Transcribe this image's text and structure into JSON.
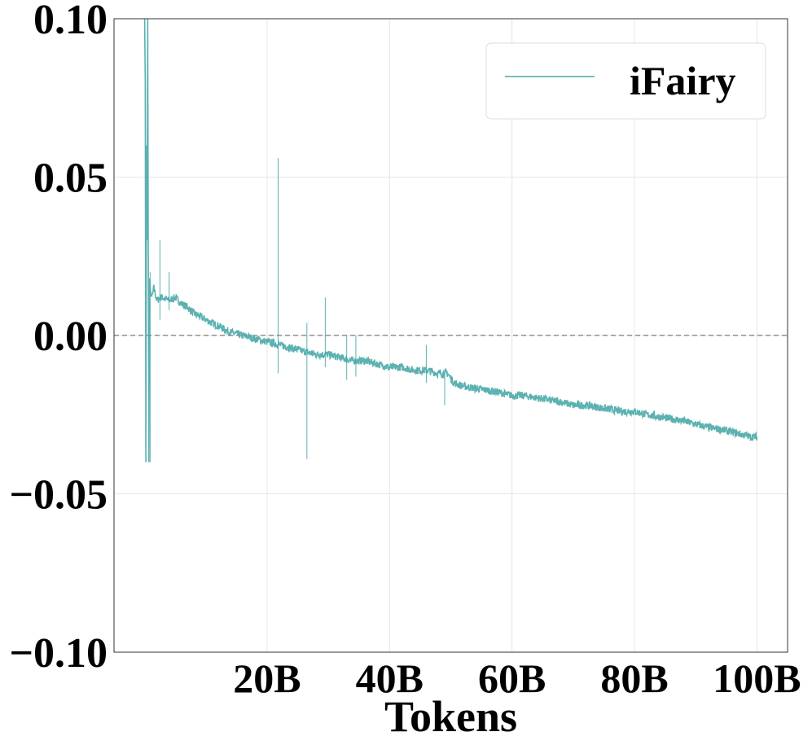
{
  "chart_data": {
    "type": "line",
    "title": "",
    "xlabel": "Tokens",
    "ylabel": "",
    "xlim": [
      -5,
      105
    ],
    "ylim": [
      -0.1,
      0.1
    ],
    "x_ticks": [
      {
        "value": 20,
        "label": "20B"
      },
      {
        "value": 40,
        "label": "40B"
      },
      {
        "value": 60,
        "label": "60B"
      },
      {
        "value": 80,
        "label": "80B"
      },
      {
        "value": 100,
        "label": "100B"
      }
    ],
    "y_ticks": [
      {
        "value": 0.1,
        "label": "0.10"
      },
      {
        "value": 0.05,
        "label": "0.05"
      },
      {
        "value": 0.0,
        "label": "0.00"
      },
      {
        "value": -0.05,
        "label": "−0.05"
      },
      {
        "value": -0.1,
        "label": "−0.10"
      }
    ],
    "grid": true,
    "legend_position": "top-right",
    "reference_line": {
      "y": 0.0,
      "style": "dashed",
      "color": "#777777"
    },
    "series": [
      {
        "name": "iFairy",
        "color": "#4aa8a8",
        "x": [
          0.0,
          0.1,
          0.2,
          0.3,
          0.4,
          0.5,
          0.6,
          0.7,
          0.8,
          1.0,
          1.2,
          1.5,
          2.0,
          2.5,
          3.0,
          4.0,
          5.0,
          6.0,
          7.0,
          8.0,
          9.0,
          10.0,
          12.0,
          14.0,
          16.0,
          18.0,
          20.0,
          22.0,
          24.0,
          26.0,
          28.0,
          30.0,
          32.0,
          34.0,
          36.0,
          38.0,
          40.0,
          42.0,
          44.0,
          46.0,
          48.0,
          49.5,
          50.5,
          52.0,
          55.0,
          58.0,
          60.0,
          62.0,
          65.0,
          68.0,
          70.0,
          72.0,
          75.0,
          78.0,
          80.0,
          82.0,
          85.0,
          88.0,
          90.0,
          92.0,
          95.0,
          97.0,
          99.0,
          100.0
        ],
        "y": [
          0.1,
          0.08,
          -0.04,
          0.06,
          0.03,
          0.1,
          0.02,
          -0.04,
          0.018,
          0.013,
          0.012,
          0.015,
          0.011,
          0.012,
          0.012,
          0.011,
          0.012,
          0.01,
          0.009,
          0.007,
          0.006,
          0.005,
          0.003,
          0.001,
          0.0,
          -0.001,
          -0.002,
          -0.003,
          -0.004,
          -0.005,
          -0.006,
          -0.006,
          -0.007,
          -0.008,
          -0.008,
          -0.009,
          -0.01,
          -0.01,
          -0.011,
          -0.011,
          -0.012,
          -0.012,
          -0.015,
          -0.016,
          -0.017,
          -0.018,
          -0.019,
          -0.019,
          -0.02,
          -0.021,
          -0.022,
          -0.022,
          -0.023,
          -0.024,
          -0.024,
          -0.025,
          -0.026,
          -0.027,
          -0.028,
          -0.029,
          -0.03,
          -0.031,
          -0.032,
          -0.032
        ]
      }
    ],
    "spikes": [
      {
        "x": 21.8,
        "y0": -0.012,
        "y1": 0.056
      },
      {
        "x": 26.5,
        "y0": -0.039,
        "y1": 0.004
      },
      {
        "x": 29.5,
        "y0": -0.01,
        "y1": 0.012
      },
      {
        "x": 33.0,
        "y0": -0.014,
        "y1": 0.0
      },
      {
        "x": 34.5,
        "y0": -0.013,
        "y1": 0.0
      },
      {
        "x": 46.0,
        "y0": -0.015,
        "y1": -0.003
      },
      {
        "x": 49.0,
        "y0": -0.022,
        "y1": -0.012
      },
      {
        "x": 2.5,
        "y0": 0.005,
        "y1": 0.03
      },
      {
        "x": 4.0,
        "y0": 0.008,
        "y1": 0.02
      },
      {
        "x": 0.9,
        "y0": -0.04,
        "y1": 0.02
      }
    ]
  }
}
